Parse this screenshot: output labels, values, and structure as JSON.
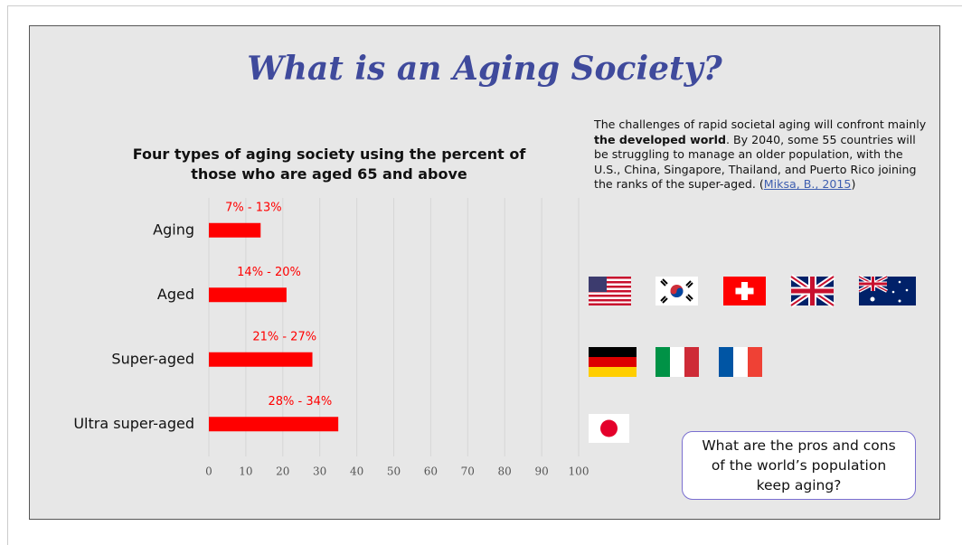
{
  "chart_data": {
    "type": "bar",
    "orientation": "horizontal",
    "title": "Four types of aging society using the percent of those who are aged 65 and above",
    "categories": [
      "Aging",
      "Aged",
      "Super-aged",
      "Ultra super-aged"
    ],
    "values": [
      14,
      21,
      28,
      35
    ],
    "annotations": [
      "7% - 13%",
      "14% - 20%",
      "21% - 27%",
      "28% - 34%"
    ],
    "color": "#ff0000",
    "xlim": [
      0,
      100
    ],
    "xticks": [
      0,
      10,
      20,
      30,
      40,
      50,
      60,
      70,
      80,
      90,
      100
    ],
    "grid": true
  },
  "slide": {
    "title": "What is an Aging Society?",
    "paragraph": [
      "The challenges of rapid societal aging will confront mainly ",
      "the developed world",
      ". By 2040, some 55 countries will be struggling to manage an older population, with the U.S., China, Singapore, Thailand, and Puerto Rico joining the ranks of the super-aged. (",
      "Miksa, B., 2015",
      ")"
    ],
    "question": "What are the pros and cons of the world’s population keep aging?"
  }
}
